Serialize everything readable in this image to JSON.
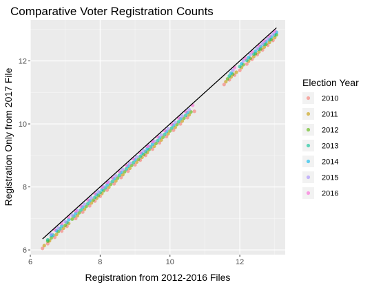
{
  "chart_data": {
    "type": "scatter",
    "title": "Comparative Voter Registration Counts",
    "xlabel": "Registration from 2012-2016 Files",
    "ylabel": "Registration Only from 2017 File",
    "xlim": [
      6,
      13.3
    ],
    "ylim": [
      5.85,
      13.3
    ],
    "x_ticks": [
      6,
      8,
      10,
      12
    ],
    "y_ticks": [
      6,
      8,
      10,
      12
    ],
    "grid": true,
    "legend_position": "right",
    "legend_title": "Election Year",
    "reference_line": {
      "x": [
        6.35,
        13.05
      ],
      "y": [
        6.35,
        13.05
      ],
      "color": "#000000"
    },
    "series": [
      {
        "name": "2010",
        "color": "#F8766D",
        "offset": -0.3,
        "x": [
          6.35,
          6.5,
          6.7,
          6.9,
          7.05,
          7.3,
          7.5,
          7.7,
          7.85,
          8.0,
          8.2,
          8.4,
          8.6,
          8.8,
          9.0,
          9.15,
          9.3,
          9.5,
          9.7,
          9.9,
          10.1,
          10.3,
          10.5,
          10.7,
          11.55,
          11.7,
          11.85,
          12.0,
          12.2,
          12.35,
          12.5,
          12.65,
          12.8,
          12.95
        ]
      },
      {
        "name": "2011",
        "color": "#C49A00",
        "offset": -0.26,
        "x": [
          6.4,
          6.55,
          6.75,
          6.95,
          7.1,
          7.35,
          7.55,
          7.75,
          7.9,
          8.05,
          8.25,
          8.45,
          8.65,
          8.85,
          9.05,
          9.2,
          9.35,
          9.55,
          9.75,
          9.95,
          10.15,
          10.35,
          10.55,
          11.6,
          11.75,
          11.9,
          12.05,
          12.25,
          12.4,
          12.55,
          12.7,
          12.85,
          13.0
        ]
      },
      {
        "name": "2012",
        "color": "#53B400",
        "offset": -0.22,
        "x": [
          6.5,
          6.6,
          6.8,
          7.0,
          7.2,
          7.4,
          7.6,
          7.8,
          7.95,
          8.1,
          8.3,
          8.5,
          8.7,
          8.9,
          9.1,
          9.25,
          9.4,
          9.6,
          9.8,
          10.0,
          10.2,
          10.4,
          10.6,
          11.65,
          11.8,
          12.1,
          12.3,
          12.45,
          12.6,
          12.75,
          12.9,
          13.05
        ]
      },
      {
        "name": "2013",
        "color": "#00C094",
        "offset": -0.18,
        "x": [
          6.5,
          6.65,
          6.85,
          7.05,
          7.25,
          7.45,
          7.65,
          7.85,
          8.0,
          8.15,
          8.35,
          8.55,
          8.75,
          8.95,
          9.15,
          9.3,
          9.45,
          9.65,
          9.85,
          10.05,
          10.25,
          10.45,
          11.7,
          12.0,
          12.2,
          12.4,
          12.55,
          12.7,
          12.85,
          13.0
        ]
      },
      {
        "name": "2014",
        "color": "#00B6EB",
        "offset": -0.14,
        "x": [
          6.6,
          6.75,
          6.9,
          7.1,
          7.3,
          7.5,
          7.7,
          7.9,
          8.05,
          8.2,
          8.4,
          8.6,
          8.8,
          9.0,
          9.2,
          9.35,
          9.5,
          9.7,
          9.9,
          10.1,
          10.3,
          10.5,
          11.75,
          12.05,
          12.25,
          12.45,
          12.6,
          12.75,
          12.9,
          13.05
        ]
      },
      {
        "name": "2015",
        "color": "#A58AFF",
        "offset": -0.1,
        "x": [
          6.6,
          6.8,
          7.0,
          7.2,
          7.35,
          7.55,
          7.75,
          7.95,
          8.1,
          8.25,
          8.45,
          8.65,
          8.85,
          9.05,
          9.25,
          9.4,
          9.55,
          9.75,
          9.95,
          10.15,
          10.35,
          10.55,
          11.8,
          12.1,
          12.3,
          12.5,
          12.65,
          12.8,
          12.95
        ]
      },
      {
        "name": "2016",
        "color": "#FB61D7",
        "offset": -0.06,
        "x": [
          6.7,
          6.9,
          7.1,
          7.3,
          7.45,
          7.65,
          7.85,
          8.05,
          8.2,
          8.35,
          8.55,
          8.75,
          8.95,
          9.15,
          9.35,
          9.5,
          9.65,
          9.85,
          10.05,
          10.25,
          10.45,
          10.65,
          11.85,
          12.15,
          12.35,
          12.55,
          12.7,
          12.85,
          13.0
        ]
      }
    ]
  }
}
